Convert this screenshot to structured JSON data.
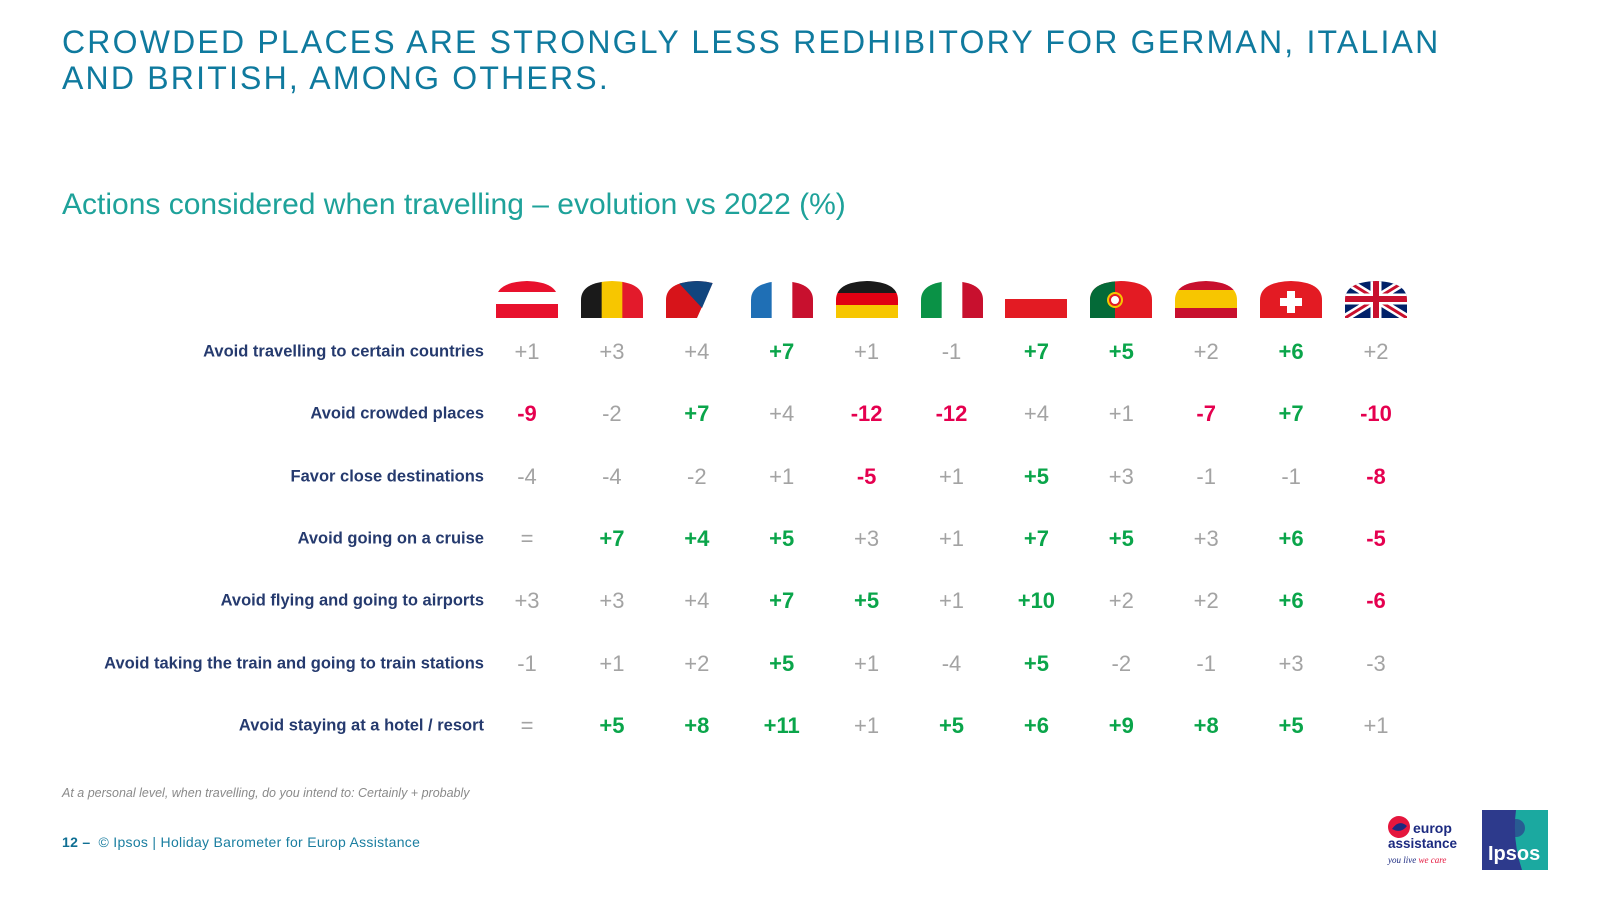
{
  "header": {
    "title_line1": "CROWDED PLACES ARE STRONGLY LESS REDHIBITORY FOR GERMAN, ITALIAN",
    "title_line2": "AND BRITISH, AMONG OTHERS."
  },
  "chart_data": {
    "type": "table",
    "title": "Actions considered when travelling – evolution vs 2022 (%)",
    "columns": [
      "austria-flag-icon",
      "belgium-flag-icon",
      "czech-republic-flag-icon",
      "france-flag-icon",
      "germany-flag-icon",
      "italy-flag-icon",
      "poland-flag-icon",
      "portugal-flag-icon",
      "spain-flag-icon",
      "switzerland-flag-icon",
      "united-kingdom-flag-icon"
    ],
    "colors": {
      "up": "#0aa54a",
      "down": "#e5004f",
      "neutral": "#a3a3a3"
    },
    "rows": [
      {
        "label": "Avoid travelling to certain countries",
        "values": [
          "+1",
          "+3",
          "+4",
          "+7",
          "+1",
          "-1",
          "+7",
          "+5",
          "+2",
          "+6",
          "+2"
        ],
        "status": [
          "neutral",
          "neutral",
          "neutral",
          "up",
          "neutral",
          "neutral",
          "up",
          "up",
          "neutral",
          "up",
          "neutral"
        ]
      },
      {
        "label": "Avoid crowded places",
        "values": [
          "-9",
          "-2",
          "+7",
          "+4",
          "-12",
          "-12",
          "+4",
          "+1",
          "-7",
          "+7",
          "-10"
        ],
        "status": [
          "down",
          "neutral",
          "up",
          "neutral",
          "down",
          "down",
          "neutral",
          "neutral",
          "down",
          "up",
          "down"
        ]
      },
      {
        "label": "Favor close destinations",
        "values": [
          "-4",
          "-4",
          "-2",
          "+1",
          "-5",
          "+1",
          "+5",
          "+3",
          "-1",
          "-1",
          "-8"
        ],
        "status": [
          "neutral",
          "neutral",
          "neutral",
          "neutral",
          "down",
          "neutral",
          "up",
          "neutral",
          "neutral",
          "neutral",
          "down"
        ]
      },
      {
        "label": "Avoid going on a cruise",
        "values": [
          "=",
          "+7",
          "+4",
          "+5",
          "+3",
          "+1",
          "+7",
          "+5",
          "+3",
          "+6",
          "-5"
        ],
        "status": [
          "neutral",
          "up",
          "up",
          "up",
          "neutral",
          "neutral",
          "up",
          "up",
          "neutral",
          "up",
          "down"
        ]
      },
      {
        "label": "Avoid flying and going to airports",
        "values": [
          "+3",
          "+3",
          "+4",
          "+7",
          "+5",
          "+1",
          "+10",
          "+2",
          "+2",
          "+6",
          "-6"
        ],
        "status": [
          "neutral",
          "neutral",
          "neutral",
          "up",
          "up",
          "neutral",
          "up",
          "neutral",
          "neutral",
          "up",
          "down"
        ]
      },
      {
        "label": "Avoid taking the train and going to train stations",
        "values": [
          "-1",
          "+1",
          "+2",
          "+5",
          "+1",
          "-4",
          "+5",
          "-2",
          "-1",
          "+3",
          "-3"
        ],
        "status": [
          "neutral",
          "neutral",
          "neutral",
          "up",
          "neutral",
          "neutral",
          "up",
          "neutral",
          "neutral",
          "neutral",
          "neutral"
        ]
      },
      {
        "label": "Avoid staying at a hotel / resort",
        "values": [
          "=",
          "+5",
          "+8",
          "+11",
          "+1",
          "+5",
          "+6",
          "+9",
          "+8",
          "+5",
          "+1"
        ],
        "status": [
          "neutral",
          "up",
          "up",
          "up",
          "neutral",
          "up",
          "up",
          "up",
          "up",
          "up",
          "neutral"
        ]
      }
    ]
  },
  "note": "At a personal level, when travelling, do you intend to: Certainly + probably",
  "footer": {
    "page": "12 –",
    "text": "© Ipsos | Holiday Barometer for Europ Assistance"
  },
  "logos": {
    "europ_assistance": "europ assistance you live we care",
    "ipsos": "Ipsos"
  }
}
